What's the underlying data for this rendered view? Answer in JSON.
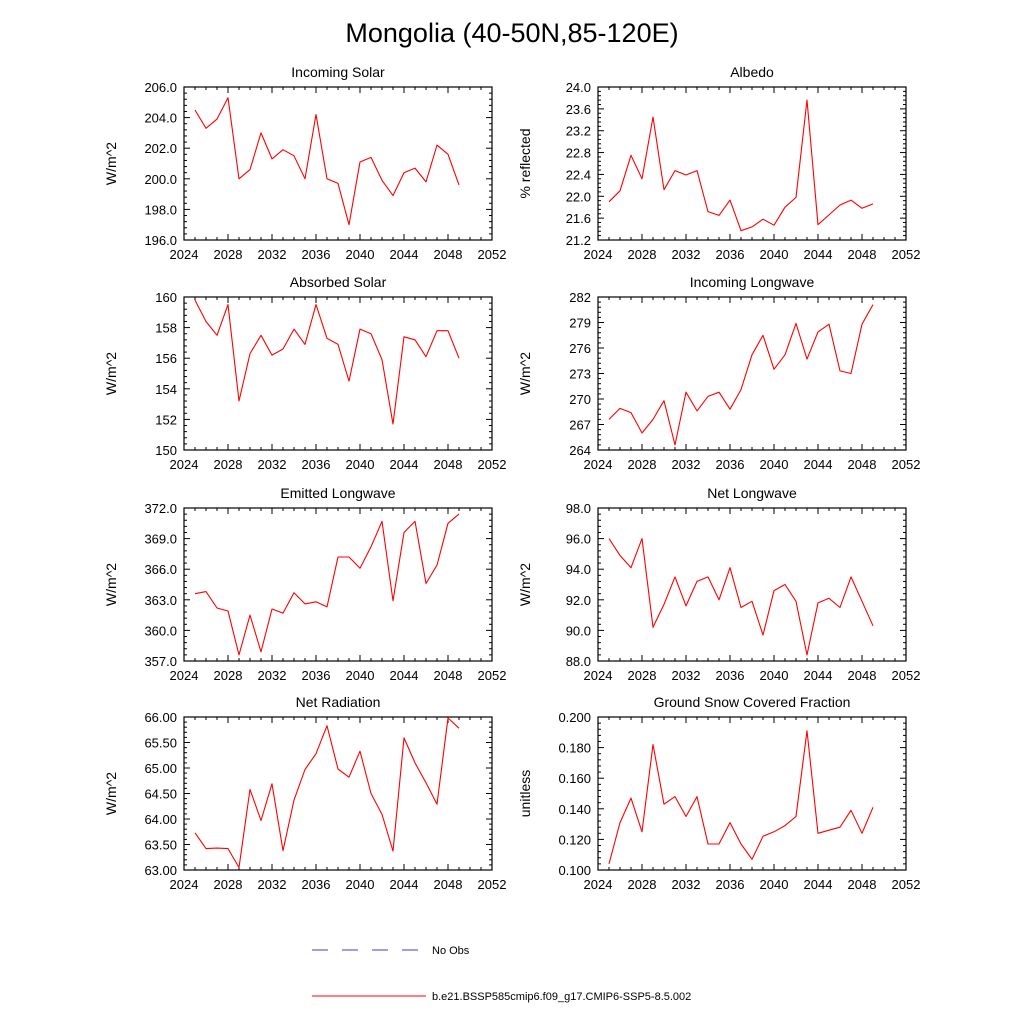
{
  "title": "Mongolia (40-50N,85-120E)",
  "legend": [
    {
      "label": "No Obs",
      "color": "#3b3bd0",
      "dash": "dashed"
    },
    {
      "label": "b.e21.BSSP585cmip6.f09_g17.CMIP6-SSP5-8.5.002",
      "color": "#ff0000",
      "dash": "solid"
    }
  ],
  "chart_data": [
    {
      "type": "line",
      "title": "Incoming Solar",
      "ylabel": "W/m^2",
      "xlim": [
        2024,
        2052
      ],
      "ylim": [
        196.0,
        206.0
      ],
      "xticks": [
        "2024",
        "2028",
        "2032",
        "2036",
        "2040",
        "2044",
        "2048",
        "2052"
      ],
      "yticks": [
        "196.0",
        "198.0",
        "200.0",
        "202.0",
        "204.0",
        "206.0"
      ],
      "series": [
        {
          "color": "#ff0000",
          "x": [
            2025,
            2026,
            2027,
            2028,
            2029,
            2030,
            2031,
            2032,
            2033,
            2034,
            2035,
            2036,
            2037,
            2038,
            2039,
            2040,
            2041,
            2042,
            2043,
            2044,
            2045,
            2046,
            2047,
            2048,
            2049
          ],
          "values": [
            204.5,
            203.3,
            203.9,
            205.3,
            200.0,
            200.6,
            203.0,
            201.3,
            201.9,
            201.5,
            200.0,
            204.2,
            200.0,
            199.7,
            197.0,
            201.1,
            201.4,
            199.9,
            198.9,
            200.4,
            200.7,
            199.8,
            202.2,
            201.6,
            199.6
          ]
        }
      ]
    },
    {
      "type": "line",
      "title": "Albedo",
      "ylabel": "% reflected",
      "xlim": [
        2024,
        2052
      ],
      "ylim": [
        21.2,
        24.0
      ],
      "xticks": [
        "2024",
        "2028",
        "2032",
        "2036",
        "2040",
        "2044",
        "2048",
        "2052"
      ],
      "yticks": [
        "21.2",
        "21.6",
        "22.0",
        "22.4",
        "22.8",
        "23.2",
        "23.6",
        "24.0"
      ],
      "series": [
        {
          "color": "#ff0000",
          "x": [
            2025,
            2026,
            2027,
            2028,
            2029,
            2030,
            2031,
            2032,
            2033,
            2034,
            2035,
            2036,
            2037,
            2038,
            2039,
            2040,
            2041,
            2042,
            2043,
            2044,
            2045,
            2046,
            2047,
            2048,
            2049
          ],
          "values": [
            21.9,
            22.1,
            22.75,
            22.32,
            23.45,
            22.12,
            22.47,
            22.39,
            22.47,
            21.72,
            21.65,
            21.93,
            21.37,
            21.44,
            21.58,
            21.47,
            21.8,
            21.98,
            23.76,
            21.48,
            21.66,
            21.84,
            21.93,
            21.78,
            21.86
          ]
        }
      ]
    },
    {
      "type": "line",
      "title": "Absorbed Solar",
      "ylabel": "W/m^2",
      "xlim": [
        2024,
        2052
      ],
      "ylim": [
        150,
        160
      ],
      "xticks": [
        "2024",
        "2028",
        "2032",
        "2036",
        "2040",
        "2044",
        "2048",
        "2052"
      ],
      "yticks": [
        "150",
        "152",
        "154",
        "156",
        "158",
        "160"
      ],
      "series": [
        {
          "color": "#ff0000",
          "x": [
            2025,
            2026,
            2027,
            2028,
            2029,
            2030,
            2031,
            2032,
            2033,
            2034,
            2035,
            2036,
            2037,
            2038,
            2039,
            2040,
            2041,
            2042,
            2043,
            2044,
            2045,
            2046,
            2047,
            2048,
            2049
          ],
          "values": [
            159.8,
            158.4,
            157.5,
            159.5,
            153.2,
            156.3,
            157.5,
            156.2,
            156.6,
            157.9,
            156.9,
            159.5,
            157.3,
            156.9,
            154.5,
            157.9,
            157.6,
            155.9,
            151.7,
            157.4,
            157.2,
            156.1,
            157.8,
            157.8,
            156.0
          ]
        }
      ]
    },
    {
      "type": "line",
      "title": "Incoming Longwave",
      "ylabel": "W/m^2",
      "xlim": [
        2024,
        2052
      ],
      "ylim": [
        264,
        282
      ],
      "xticks": [
        "2024",
        "2028",
        "2032",
        "2036",
        "2040",
        "2044",
        "2048",
        "2052"
      ],
      "yticks": [
        "264",
        "267",
        "270",
        "273",
        "276",
        "279",
        "282"
      ],
      "series": [
        {
          "color": "#ff0000",
          "x": [
            2025,
            2026,
            2027,
            2028,
            2029,
            2030,
            2031,
            2032,
            2033,
            2034,
            2035,
            2036,
            2037,
            2038,
            2039,
            2040,
            2041,
            2042,
            2043,
            2044,
            2045,
            2046,
            2047,
            2048,
            2049
          ],
          "values": [
            267.6,
            268.9,
            268.4,
            266.0,
            267.6,
            269.8,
            264.6,
            270.8,
            268.6,
            270.3,
            270.8,
            268.8,
            271.1,
            275.2,
            277.5,
            273.5,
            275.2,
            278.9,
            274.7,
            277.9,
            278.8,
            273.3,
            273.0,
            278.8,
            281.1
          ]
        }
      ]
    },
    {
      "type": "line",
      "title": "Emitted Longwave",
      "ylabel": "W/m^2",
      "xlim": [
        2024,
        2052
      ],
      "ylim": [
        357.0,
        372.0
      ],
      "xticks": [
        "2024",
        "2028",
        "2032",
        "2036",
        "2040",
        "2044",
        "2048",
        "2052"
      ],
      "yticks": [
        "357.0",
        "360.0",
        "363.0",
        "366.0",
        "369.0",
        "372.0"
      ],
      "series": [
        {
          "color": "#ff0000",
          "x": [
            2025,
            2026,
            2027,
            2028,
            2029,
            2030,
            2031,
            2032,
            2033,
            2034,
            2035,
            2036,
            2037,
            2038,
            2039,
            2040,
            2041,
            2042,
            2043,
            2044,
            2045,
            2046,
            2047,
            2048,
            2049
          ],
          "values": [
            363.6,
            363.8,
            362.2,
            361.9,
            357.6,
            361.5,
            357.9,
            362.1,
            361.7,
            363.7,
            362.6,
            362.8,
            362.3,
            367.2,
            367.2,
            366.1,
            368.2,
            370.7,
            362.9,
            369.6,
            370.7,
            364.6,
            366.4,
            370.5,
            371.4
          ]
        }
      ]
    },
    {
      "type": "line",
      "title": "Net Longwave",
      "ylabel": "W/m^2",
      "xlim": [
        2024,
        2052
      ],
      "ylim": [
        88.0,
        98.0
      ],
      "xticks": [
        "2024",
        "2028",
        "2032",
        "2036",
        "2040",
        "2044",
        "2048",
        "2052"
      ],
      "yticks": [
        "88.0",
        "90.0",
        "92.0",
        "94.0",
        "96.0",
        "98.0"
      ],
      "series": [
        {
          "color": "#ff0000",
          "x": [
            2025,
            2026,
            2027,
            2028,
            2029,
            2030,
            2031,
            2032,
            2033,
            2034,
            2035,
            2036,
            2037,
            2038,
            2039,
            2040,
            2041,
            2042,
            2043,
            2044,
            2045,
            2046,
            2047,
            2048,
            2049
          ],
          "values": [
            96.0,
            94.9,
            94.1,
            96.0,
            90.2,
            91.7,
            93.5,
            91.6,
            93.2,
            93.5,
            92.0,
            94.1,
            91.5,
            91.9,
            89.7,
            92.6,
            93.0,
            91.9,
            88.4,
            91.8,
            92.1,
            91.5,
            93.5,
            91.9,
            90.3
          ]
        }
      ]
    },
    {
      "type": "line",
      "title": "Net Radiation",
      "ylabel": "W/m^2",
      "xlim": [
        2024,
        2052
      ],
      "ylim": [
        63.0,
        66.0
      ],
      "xticks": [
        "2024",
        "2028",
        "2032",
        "2036",
        "2040",
        "2044",
        "2048",
        "2052"
      ],
      "yticks": [
        "63.00",
        "63.50",
        "64.00",
        "64.50",
        "65.00",
        "65.50",
        "66.00"
      ],
      "series": [
        {
          "color": "#ff0000",
          "x": [
            2025,
            2026,
            2027,
            2028,
            2029,
            2030,
            2031,
            2032,
            2033,
            2034,
            2035,
            2036,
            2037,
            2038,
            2039,
            2040,
            2041,
            2042,
            2043,
            2044,
            2045,
            2046,
            2047,
            2048,
            2049
          ],
          "values": [
            63.73,
            63.42,
            63.43,
            63.42,
            63.05,
            64.58,
            63.97,
            64.69,
            63.38,
            64.37,
            64.97,
            65.28,
            65.83,
            64.98,
            64.82,
            65.33,
            64.5,
            64.09,
            63.37,
            65.59,
            65.1,
            64.71,
            64.29,
            65.98,
            65.78
          ]
        }
      ]
    },
    {
      "type": "line",
      "title": "Ground Snow Covered Fraction",
      "ylabel": "unitless",
      "xlim": [
        2024,
        2052
      ],
      "ylim": [
        0.1,
        0.2
      ],
      "xticks": [
        "2024",
        "2028",
        "2032",
        "2036",
        "2040",
        "2044",
        "2048",
        "2052"
      ],
      "yticks": [
        "0.100",
        "0.120",
        "0.140",
        "0.160",
        "0.180",
        "0.200"
      ],
      "series": [
        {
          "color": "#ff0000",
          "x": [
            2025,
            2026,
            2027,
            2028,
            2029,
            2030,
            2031,
            2032,
            2033,
            2034,
            2035,
            2036,
            2037,
            2038,
            2039,
            2040,
            2041,
            2042,
            2043,
            2044,
            2045,
            2046,
            2047,
            2048,
            2049
          ],
          "values": [
            0.104,
            0.131,
            0.147,
            0.125,
            0.182,
            0.143,
            0.148,
            0.135,
            0.148,
            0.117,
            0.117,
            0.131,
            0.117,
            0.107,
            0.122,
            0.125,
            0.129,
            0.135,
            0.191,
            0.124,
            0.126,
            0.128,
            0.139,
            0.124,
            0.141
          ]
        }
      ]
    }
  ]
}
